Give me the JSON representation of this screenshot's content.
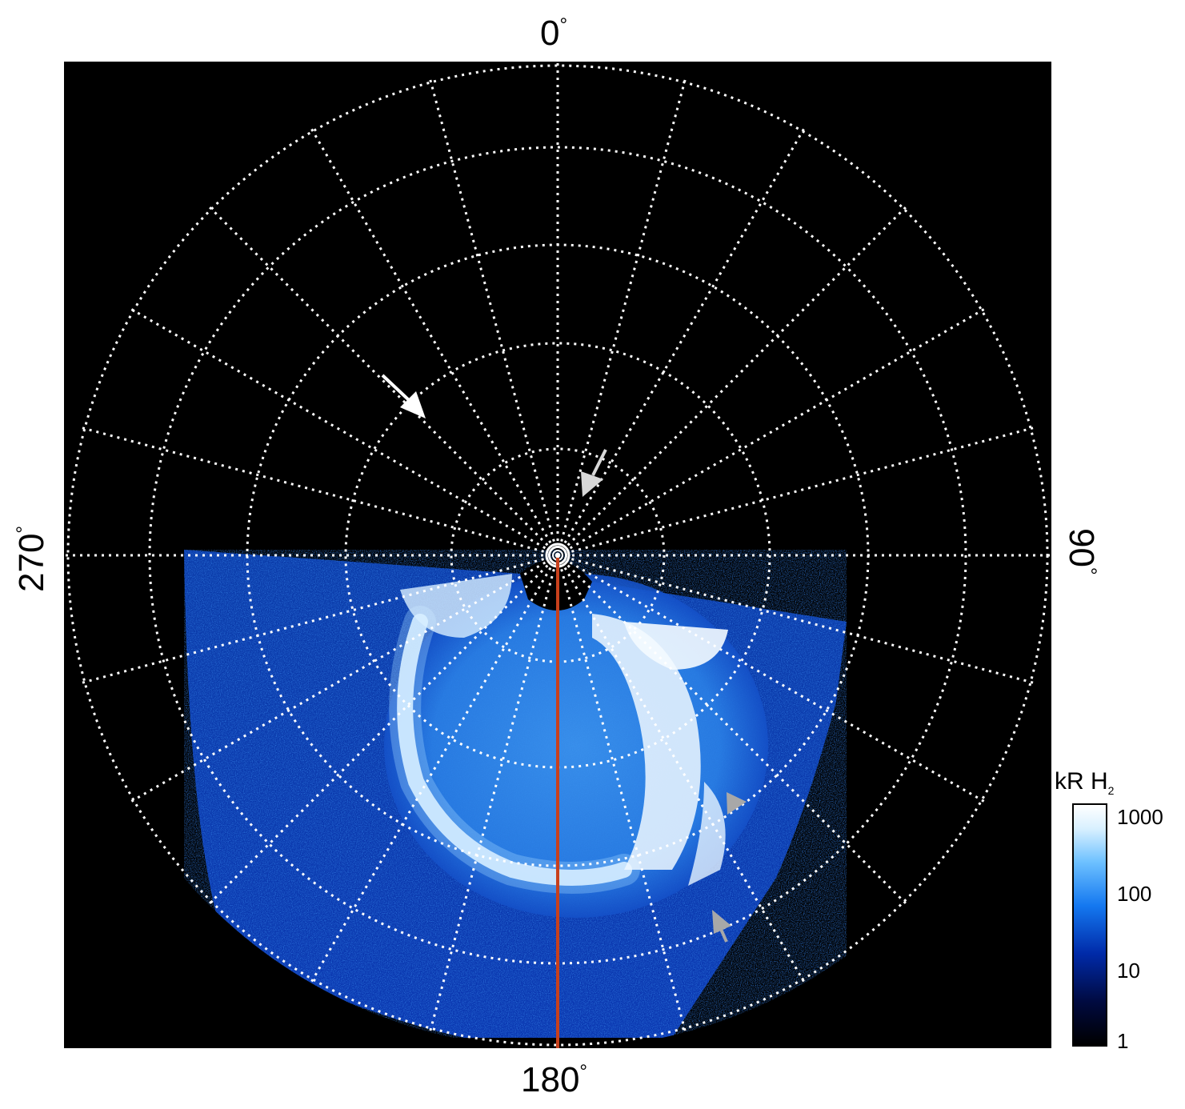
{
  "axis_labels": {
    "top": "0",
    "bottom": "180",
    "left": "270",
    "right": "90",
    "degree_symbol": "°"
  },
  "colorbar": {
    "unit": "kR H",
    "unit_subscript": "2",
    "ticks": [
      "1000",
      "100",
      "10",
      "1"
    ],
    "scale": "log"
  },
  "colors": {
    "background": "#000000",
    "grid": "#ffffff",
    "meridian_line": "#c8401c",
    "arrow_white": "#ffffff",
    "arrow_gray": "#a8a8a8",
    "aurora_bright": "#ffffff",
    "aurora_mid": "#3a8ef0",
    "aurora_dark": "#0a2a9a"
  },
  "image": {
    "description_icons": [
      "white-arrow-icon",
      "gray-arrow-icon",
      "gray-arrow-icon",
      "gray-arrow-icon"
    ]
  }
}
